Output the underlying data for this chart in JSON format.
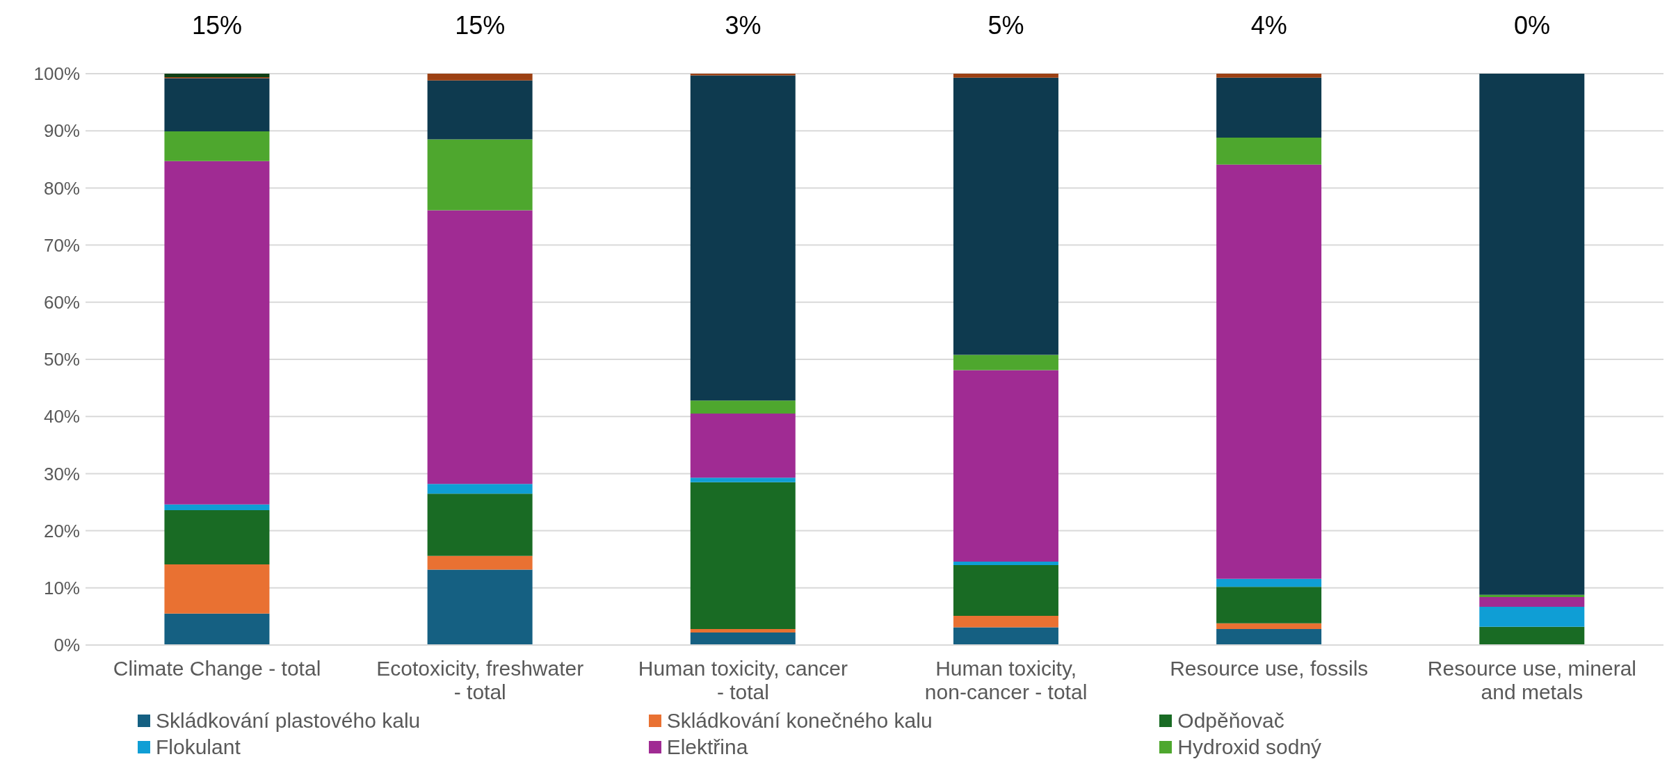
{
  "chart_data": {
    "type": "bar",
    "stacked": true,
    "categories": [
      "Climate Change - total",
      "Ecotoxicity, freshwater - total",
      "Human toxicity, cancer - total",
      "Human toxicity, non-cancer - total",
      "Resource use, fossils",
      "Resource use, mineral and metals"
    ],
    "series": [
      {
        "name": "Skládkování plastového kalu",
        "color": "#156082",
        "values": [
          5.5,
          13.2,
          2.2,
          3.1,
          2.8,
          0
        ]
      },
      {
        "name": "Skládkování konečného kalu",
        "color": "#e97132",
        "values": [
          8.6,
          2.4,
          0.6,
          2.0,
          1.0,
          0
        ]
      },
      {
        "name": "Odpěňovač",
        "color": "#196b24",
        "values": [
          9.5,
          10.9,
          25.7,
          8.9,
          6.4,
          3.2
        ]
      },
      {
        "name": "Flokulant",
        "color": "#0f9ed5",
        "values": [
          1.0,
          1.7,
          0.8,
          0.6,
          1.4,
          3.5
        ]
      },
      {
        "name": "Elektřina",
        "color": "#a02b93",
        "values": [
          60.1,
          47.9,
          11.2,
          33.5,
          72.5,
          1.7
        ]
      },
      {
        "name": "Hydroxid sodný",
        "color": "#4ea72e",
        "values": [
          5.2,
          12.4,
          2.3,
          2.7,
          4.7,
          0.4
        ]
      },
      {
        "color": "#0e3a4f",
        "values": [
          9.3,
          10.3,
          56.9,
          48.5,
          10.5,
          91.2
        ]
      },
      {
        "color": "#9c4013",
        "values": [
          0.2,
          1.2,
          0.3,
          0.7,
          0.7,
          0
        ]
      },
      {
        "color": "#0f4016",
        "values": [
          0.6,
          0,
          0,
          0,
          0,
          0
        ]
      }
    ],
    "ylim": [
      0,
      100
    ],
    "yticks": [
      {
        "value": 0,
        "label": "0%"
      },
      {
        "value": 10,
        "label": "10%"
      },
      {
        "value": 20,
        "label": "20%"
      },
      {
        "value": 30,
        "label": "30%"
      },
      {
        "value": 40,
        "label": "40%"
      },
      {
        "value": 50,
        "label": "50%"
      },
      {
        "value": 60,
        "label": "60%"
      },
      {
        "value": 70,
        "label": "70%"
      },
      {
        "value": 80,
        "label": "80%"
      },
      {
        "value": 90,
        "label": "90%"
      },
      {
        "value": 100,
        "label": "100%"
      }
    ],
    "annotations": [
      "15%",
      "15%",
      "3%",
      "5%",
      "4%",
      "0%"
    ],
    "grid": "y",
    "legend": "bottom"
  }
}
